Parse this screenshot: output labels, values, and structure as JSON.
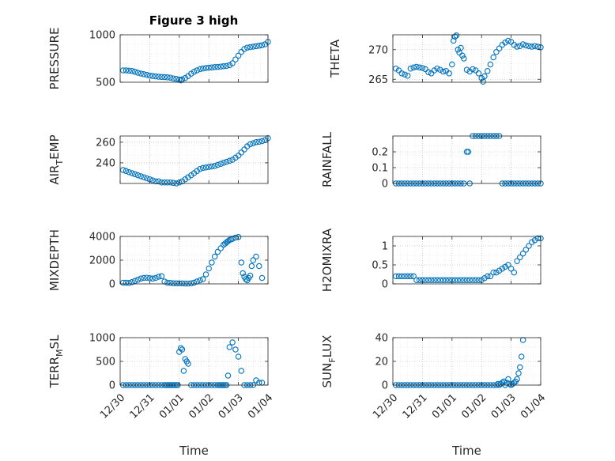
{
  "figure": {
    "title": "Figure 3 high",
    "grid": true,
    "marker": "open-circle",
    "marker_color": "#0072BD",
    "axis_color": "#262626",
    "grid_color": "#b0b0b0"
  },
  "chart_data": [
    {
      "type": "scatter",
      "title": "Figure 3 high",
      "ylabel": "PRESSURE",
      "xlabel": "",
      "xlim": [
        0,
        5
      ],
      "ylim": [
        500,
        1000
      ],
      "yticks": [
        500,
        1000
      ],
      "xtick_labels": [],
      "series": [
        {
          "x": [
            0.1,
            0.2,
            0.3,
            0.4,
            0.5,
            0.6,
            0.7,
            0.8,
            0.9,
            1.0,
            1.1,
            1.2,
            1.3,
            1.4,
            1.5,
            1.6,
            1.7,
            1.8,
            1.9,
            2.0,
            2.05,
            2.1,
            2.2,
            2.3,
            2.4,
            2.5,
            2.6,
            2.7,
            2.8,
            2.9,
            3.0,
            3.1,
            3.2,
            3.3,
            3.4,
            3.5,
            3.6,
            3.7,
            3.8,
            3.9,
            4.0,
            4.1,
            4.2,
            4.3,
            4.4,
            4.5,
            4.6,
            4.7,
            4.8,
            4.9,
            5.0
          ],
          "y": [
            625,
            625,
            622,
            618,
            610,
            600,
            592,
            585,
            578,
            570,
            566,
            562,
            558,
            556,
            554,
            552,
            548,
            540,
            535,
            527,
            520,
            530,
            545,
            565,
            590,
            610,
            625,
            638,
            645,
            650,
            653,
            656,
            660,
            662,
            665,
            668,
            672,
            680,
            700,
            740,
            780,
            820,
            850,
            865,
            870,
            875,
            880,
            885,
            890,
            900,
            925
          ]
        }
      ]
    },
    {
      "type": "scatter",
      "ylabel": "THETA",
      "xlabel": "",
      "xlim": [
        0,
        5
      ],
      "ylim": [
        264.5,
        272.5
      ],
      "yticks": [
        265,
        270
      ],
      "xtick_labels": [],
      "series": [
        {
          "x": [
            0.1,
            0.2,
            0.3,
            0.4,
            0.5,
            0.6,
            0.7,
            0.8,
            0.9,
            1.0,
            1.1,
            1.2,
            1.3,
            1.4,
            1.5,
            1.6,
            1.7,
            1.8,
            1.9,
            2.0,
            2.05,
            2.1,
            2.15,
            2.2,
            2.25,
            2.3,
            2.35,
            2.4,
            2.5,
            2.6,
            2.7,
            2.8,
            2.9,
            3.0,
            3.05,
            3.1,
            3.2,
            3.3,
            3.4,
            3.5,
            3.6,
            3.7,
            3.8,
            3.9,
            4.0,
            4.1,
            4.2,
            4.3,
            4.4,
            4.5,
            4.6,
            4.7,
            4.8,
            4.9,
            5.0
          ],
          "y": [
            266.8,
            266.5,
            266.0,
            265.8,
            265.6,
            266.8,
            267.0,
            267.1,
            267.0,
            266.9,
            266.7,
            266.2,
            266.0,
            266.5,
            266.8,
            266.6,
            266.3,
            266.4,
            266.0,
            267.5,
            271.5,
            272.2,
            272.4,
            270.0,
            269.5,
            270.3,
            269.0,
            268.5,
            266.6,
            266.3,
            266.7,
            266.5,
            266.0,
            265.2,
            264.6,
            265.5,
            266.4,
            267.5,
            268.7,
            269.6,
            270.2,
            270.8,
            271.2,
            271.5,
            271.3,
            270.8,
            270.5,
            270.6,
            270.9,
            270.7,
            270.6,
            270.5,
            270.6,
            270.5,
            270.4
          ]
        }
      ]
    },
    {
      "type": "scatter",
      "ylabel": "AIR_TEMP",
      "xlabel": "",
      "xlim": [
        0,
        5
      ],
      "ylim": [
        220,
        266
      ],
      "yticks": [
        240,
        260
      ],
      "xtick_labels": [],
      "series": [
        {
          "x": [
            0.1,
            0.2,
            0.3,
            0.4,
            0.5,
            0.6,
            0.7,
            0.8,
            0.9,
            1.0,
            1.1,
            1.2,
            1.3,
            1.4,
            1.5,
            1.6,
            1.7,
            1.8,
            1.9,
            2.0,
            2.1,
            2.2,
            2.3,
            2.4,
            2.5,
            2.6,
            2.7,
            2.8,
            2.9,
            3.0,
            3.1,
            3.2,
            3.3,
            3.4,
            3.5,
            3.6,
            3.7,
            3.8,
            3.9,
            4.0,
            4.1,
            4.2,
            4.3,
            4.4,
            4.5,
            4.6,
            4.7,
            4.8,
            4.9,
            5.0
          ],
          "y": [
            233,
            232,
            231,
            230,
            229,
            228,
            227,
            226,
            225,
            224,
            223,
            222,
            222,
            221,
            221,
            221,
            221,
            220.5,
            220,
            221,
            222,
            224,
            226,
            228,
            230,
            232,
            234,
            235,
            235.5,
            236,
            236.5,
            237,
            238,
            239,
            240,
            241,
            242,
            243,
            245,
            247,
            250,
            253,
            256,
            258,
            259,
            260,
            260.5,
            261,
            262,
            264
          ]
        }
      ]
    },
    {
      "type": "scatter",
      "ylabel": "RAINFALL",
      "xlabel": "",
      "xlim": [
        0,
        5
      ],
      "ylim": [
        0,
        0.3
      ],
      "yticks": [
        0,
        0.1,
        0.2
      ],
      "xtick_labels": [],
      "series": [
        {
          "x": [
            0.1,
            0.2,
            0.3,
            0.4,
            0.5,
            0.6,
            0.7,
            0.8,
            0.9,
            1.0,
            1.1,
            1.2,
            1.3,
            1.4,
            1.5,
            1.6,
            1.7,
            1.8,
            1.9,
            2.0,
            2.1,
            2.2,
            2.3,
            2.4,
            2.5,
            2.55,
            2.6,
            2.7,
            2.8,
            2.9,
            3.0,
            3.1,
            3.2,
            3.3,
            3.4,
            3.5,
            3.6,
            3.7,
            3.8,
            3.9,
            4.0,
            4.1,
            4.2,
            4.3,
            4.4,
            4.5,
            4.6,
            4.7,
            4.8,
            4.9,
            5.0
          ],
          "y": [
            0,
            0,
            0,
            0,
            0,
            0,
            0,
            0,
            0,
            0,
            0,
            0,
            0,
            0,
            0,
            0,
            0,
            0,
            0,
            0,
            0,
            0,
            0,
            0,
            0.2,
            0.2,
            0,
            0.3,
            0.3,
            0.3,
            0.3,
            0.3,
            0.3,
            0.3,
            0.3,
            0.3,
            0.3,
            0,
            0,
            0,
            0,
            0,
            0,
            0,
            0,
            0,
            0,
            0,
            0,
            0,
            0
          ]
        }
      ]
    },
    {
      "type": "scatter",
      "ylabel": "MIXDEPTH",
      "xlabel": "",
      "xlim": [
        0,
        5
      ],
      "ylim": [
        0,
        4000
      ],
      "yticks": [
        0,
        2000,
        4000
      ],
      "xtick_labels": [],
      "series": [
        {
          "x": [
            0.1,
            0.2,
            0.3,
            0.4,
            0.5,
            0.6,
            0.7,
            0.8,
            0.9,
            1.0,
            1.1,
            1.2,
            1.3,
            1.4,
            1.5,
            1.6,
            1.7,
            1.8,
            1.9,
            2.0,
            2.1,
            2.2,
            2.3,
            2.4,
            2.5,
            2.6,
            2.7,
            2.8,
            2.9,
            3.0,
            3.1,
            3.2,
            3.3,
            3.4,
            3.5,
            3.55,
            3.6,
            3.65,
            3.7,
            3.75,
            3.8,
            3.9,
            4.0,
            4.1,
            4.15,
            4.2,
            4.25,
            4.3,
            4.35,
            4.4,
            4.45,
            4.5,
            4.6,
            4.7,
            4.8
          ],
          "y": [
            100,
            100,
            80,
            150,
            250,
            350,
            450,
            500,
            520,
            480,
            450,
            500,
            600,
            650,
            200,
            100,
            80,
            50,
            50,
            40,
            40,
            30,
            30,
            50,
            100,
            200,
            300,
            400,
            800,
            1300,
            1800,
            2300,
            2700,
            3000,
            3300,
            3400,
            3500,
            3600,
            3700,
            3750,
            3800,
            3900,
            3950,
            1800,
            900,
            600,
            400,
            300,
            500,
            700,
            1500,
            2000,
            2300,
            1500,
            500
          ]
        }
      ]
    },
    {
      "type": "scatter",
      "ylabel": "H2OMIXRA",
      "xlabel": "",
      "xlim": [
        0,
        5
      ],
      "ylim": [
        0,
        1.25
      ],
      "yticks": [
        0,
        0.5,
        1
      ],
      "xtick_labels": [],
      "series": [
        {
          "x": [
            0.1,
            0.2,
            0.3,
            0.4,
            0.5,
            0.6,
            0.7,
            0.8,
            0.9,
            1.0,
            1.1,
            1.2,
            1.3,
            1.4,
            1.5,
            1.6,
            1.7,
            1.8,
            1.9,
            2.0,
            2.1,
            2.2,
            2.3,
            2.4,
            2.5,
            2.6,
            2.7,
            2.8,
            2.9,
            3.0,
            3.1,
            3.2,
            3.3,
            3.4,
            3.5,
            3.6,
            3.7,
            3.8,
            3.9,
            4.0,
            4.1,
            4.2,
            4.3,
            4.4,
            4.5,
            4.6,
            4.7,
            4.8,
            4.9,
            5.0
          ],
          "y": [
            0.2,
            0.2,
            0.2,
            0.2,
            0.2,
            0.2,
            0.2,
            0.1,
            0.1,
            0.1,
            0.1,
            0.1,
            0.1,
            0.1,
            0.1,
            0.1,
            0.1,
            0.1,
            0.1,
            0.1,
            0.1,
            0.1,
            0.1,
            0.1,
            0.1,
            0.1,
            0.1,
            0.1,
            0.1,
            0.1,
            0.15,
            0.2,
            0.2,
            0.3,
            0.3,
            0.35,
            0.4,
            0.45,
            0.5,
            0.4,
            0.3,
            0.6,
            0.7,
            0.8,
            0.9,
            1.0,
            1.1,
            1.15,
            1.2,
            1.2
          ]
        }
      ]
    },
    {
      "type": "scatter",
      "ylabel": "TERR_MSL",
      "xlabel": "Time",
      "xlim": [
        0,
        5
      ],
      "ylim": [
        0,
        1000
      ],
      "yticks": [
        0,
        500,
        1000
      ],
      "xtick_labels": [
        "12/30",
        "12/31",
        "01/01",
        "01/02",
        "01/03",
        "01/04"
      ],
      "series": [
        {
          "x": [
            0.1,
            0.2,
            0.3,
            0.4,
            0.5,
            0.6,
            0.7,
            0.8,
            0.9,
            1.0,
            1.1,
            1.2,
            1.3,
            1.4,
            1.5,
            1.55,
            1.6,
            1.65,
            1.7,
            1.75,
            1.8,
            1.85,
            1.9,
            1.95,
            2.0,
            2.05,
            2.1,
            2.15,
            2.2,
            2.25,
            2.3,
            2.4,
            2.5,
            2.6,
            2.7,
            2.8,
            2.9,
            3.0,
            3.1,
            3.2,
            3.3,
            3.35,
            3.4,
            3.45,
            3.5,
            3.55,
            3.6,
            3.65,
            3.7,
            3.8,
            3.9,
            4.0,
            4.1,
            4.2,
            4.3,
            4.4,
            4.5,
            4.6,
            4.7,
            4.8
          ],
          "y": [
            0,
            0,
            0,
            0,
            0,
            0,
            0,
            0,
            0,
            0,
            0,
            0,
            0,
            0,
            0,
            0,
            0,
            0,
            0,
            0,
            0,
            0,
            0,
            0,
            700,
            780,
            750,
            300,
            550,
            500,
            450,
            0,
            0,
            0,
            0,
            0,
            0,
            0,
            0,
            0,
            0,
            0,
            0,
            0,
            0,
            0,
            0,
            200,
            800,
            900,
            750,
            600,
            300,
            0,
            0,
            0,
            0,
            100,
            50,
            50
          ]
        }
      ]
    },
    {
      "type": "scatter",
      "ylabel": "SUN_FLUX",
      "xlabel": "Time",
      "xlim": [
        0,
        5
      ],
      "ylim": [
        0,
        40
      ],
      "yticks": [
        0,
        20,
        40
      ],
      "xtick_labels": [
        "12/30",
        "12/31",
        "01/01",
        "01/02",
        "01/03",
        "01/04"
      ],
      "series": [
        {
          "x": [
            0.1,
            0.2,
            0.3,
            0.4,
            0.5,
            0.6,
            0.7,
            0.8,
            0.9,
            1.0,
            1.1,
            1.2,
            1.3,
            1.4,
            1.5,
            1.6,
            1.7,
            1.8,
            1.9,
            2.0,
            2.1,
            2.2,
            2.3,
            2.4,
            2.5,
            2.6,
            2.7,
            2.8,
            2.9,
            3.0,
            3.1,
            3.2,
            3.3,
            3.4,
            3.5,
            3.55,
            3.6,
            3.65,
            3.7,
            3.75,
            3.8,
            3.85,
            3.9,
            3.95,
            4.0,
            4.05,
            4.1,
            4.15,
            4.2,
            4.25,
            4.3,
            4.35,
            4.4
          ],
          "y": [
            0,
            0,
            0,
            0,
            0,
            0,
            0,
            0,
            0,
            0,
            0,
            0,
            0,
            0,
            0,
            0,
            0,
            0,
            0,
            0,
            0,
            0,
            0,
            0,
            0,
            0,
            0,
            0,
            0,
            0,
            0,
            0,
            0,
            0,
            0,
            1,
            0,
            1,
            2,
            3,
            0,
            2,
            5,
            1,
            0,
            1,
            2,
            3,
            5,
            10,
            15,
            24,
            38
          ]
        }
      ]
    }
  ]
}
